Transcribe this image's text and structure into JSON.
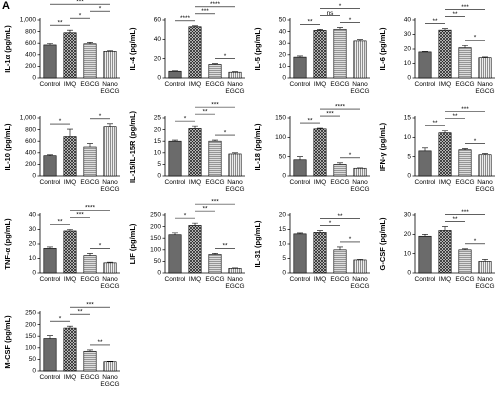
{
  "panel_label": "A",
  "chart_data": [
    {
      "type": "bar",
      "y_label": "IL-1α (pg/mL)",
      "categories": [
        "Control",
        "IMQ",
        "EGCG",
        "Nano EGCG"
      ],
      "values": [
        570,
        780,
        590,
        460
      ],
      "errors": [
        25,
        45,
        25,
        12
      ],
      "ylim": [
        0,
        1000
      ],
      "yticks": [
        0,
        200,
        400,
        600,
        800,
        {
          "value": 1000,
          "label": "1,000"
        }
      ],
      "brackets": [
        {
          "between": [
            0,
            1
          ],
          "label": "**"
        },
        {
          "between": [
            1,
            2
          ],
          "label": "*"
        },
        {
          "between": [
            2,
            3
          ],
          "label": "*"
        },
        {
          "between": [
            0,
            3
          ],
          "label": "***"
        }
      ]
    },
    {
      "type": "bar",
      "y_label": "IL-4 (pg/mL)",
      "categories": [
        "Control",
        "IMQ",
        "EGCG",
        "Nano EGCG"
      ],
      "values": [
        7,
        53,
        14,
        6
      ],
      "errors": [
        0.5,
        1,
        0.8,
        0.5
      ],
      "ylim": [
        0,
        60
      ],
      "yticks": [
        0,
        20,
        40,
        60
      ],
      "brackets": [
        {
          "between": [
            2,
            3
          ],
          "label": "*"
        },
        {
          "between": [
            0,
            1
          ],
          "label": "****"
        },
        {
          "between": [
            1,
            2
          ],
          "label": "***"
        },
        {
          "between": [
            1,
            3
          ],
          "label": "****"
        }
      ]
    },
    {
      "type": "bar",
      "y_label": "IL-5 (pg/mL)",
      "categories": [
        "Control",
        "IMQ",
        "EGCG",
        "Nano EGCG"
      ],
      "values": [
        18,
        41,
        42,
        32
      ],
      "errors": [
        1,
        1,
        1.5,
        1
      ],
      "ylim": [
        0,
        50
      ],
      "yticks": [
        0,
        10,
        20,
        30,
        40,
        50
      ],
      "brackets": [
        {
          "between": [
            0,
            1
          ],
          "label": "**"
        },
        {
          "between": [
            2,
            3
          ],
          "label": "*"
        },
        {
          "between": [
            1,
            2
          ],
          "label": "ns"
        },
        {
          "between": [
            1,
            3
          ],
          "label": "*"
        }
      ]
    },
    {
      "type": "bar",
      "y_label": "IL-6 (pg/mL)",
      "categories": [
        "Control",
        "IMQ",
        "EGCG",
        "Nano EGCG"
      ],
      "values": [
        18,
        33,
        21,
        14
      ],
      "errors": [
        0.3,
        1,
        1.5,
        0.5
      ],
      "ylim": [
        0,
        40
      ],
      "yticks": [
        0,
        10,
        20,
        30,
        40
      ],
      "brackets": [
        {
          "between": [
            2,
            3
          ],
          "label": "*"
        },
        {
          "between": [
            0,
            1
          ],
          "label": "**"
        },
        {
          "between": [
            1,
            2
          ],
          "label": "**"
        },
        {
          "between": [
            1,
            3
          ],
          "label": "***"
        }
      ]
    },
    {
      "type": "bar",
      "y_label": "IL-10 (pg/mL)",
      "categories": [
        "Control",
        "IMQ",
        "EGCG",
        "Nano EGCG"
      ],
      "values": [
        350,
        680,
        500,
        850
      ],
      "errors": [
        15,
        130,
        60,
        50
      ],
      "ylim": [
        0,
        1000
      ],
      "yticks": [
        0,
        200,
        400,
        600,
        800,
        {
          "value": 1000,
          "label": "1,000"
        }
      ],
      "brackets": [
        {
          "between": [
            0,
            1
          ],
          "label": "*"
        },
        {
          "between": [
            2,
            3
          ],
          "label": "*"
        }
      ]
    },
    {
      "type": "bar",
      "y_label": "IL-15/IL-15R (pg/mL)",
      "categories": [
        "Control",
        "IMQ",
        "EGCG",
        "Nano EGCG"
      ],
      "values": [
        15,
        20.5,
        15,
        9.5
      ],
      "errors": [
        0.5,
        1,
        0.5,
        0.5
      ],
      "ylim": [
        0,
        25
      ],
      "yticks": [
        0,
        5,
        10,
        15,
        20,
        25
      ],
      "brackets": [
        {
          "between": [
            2,
            3
          ],
          "label": "*"
        },
        {
          "between": [
            0,
            1
          ],
          "label": "*"
        },
        {
          "between": [
            1,
            2
          ],
          "label": "**"
        },
        {
          "between": [
            1,
            3
          ],
          "label": "***"
        }
      ]
    },
    {
      "type": "bar",
      "y_label": "IL-18 (pg/mL)",
      "categories": [
        "Control",
        "IMQ",
        "EGCG",
        "Nano EGCG"
      ],
      "values": [
        42,
        122,
        30,
        20
      ],
      "errors": [
        8,
        2,
        4,
        1
      ],
      "ylim": [
        0,
        150
      ],
      "yticks": [
        0,
        50,
        100,
        150
      ],
      "brackets": [
        {
          "between": [
            2,
            3
          ],
          "label": "*"
        },
        {
          "between": [
            0,
            1
          ],
          "label": "**"
        },
        {
          "between": [
            1,
            2
          ],
          "label": "***"
        },
        {
          "between": [
            1,
            3
          ],
          "label": "****"
        }
      ]
    },
    {
      "type": "bar",
      "y_label": "IFN-γ (pg/mL)",
      "categories": [
        "Control",
        "IMQ",
        "EGCG",
        "Nano EGCG"
      ],
      "values": [
        6.5,
        11.2,
        6.8,
        5.5
      ],
      "errors": [
        0.8,
        0.5,
        0.3,
        0.3
      ],
      "ylim": [
        0,
        15
      ],
      "yticks": [
        0,
        5,
        10,
        15
      ],
      "brackets": [
        {
          "between": [
            2,
            3
          ],
          "label": "*"
        },
        {
          "between": [
            0,
            1
          ],
          "label": "**"
        },
        {
          "between": [
            1,
            2
          ],
          "label": "**"
        },
        {
          "between": [
            1,
            3
          ],
          "label": "***"
        }
      ]
    },
    {
      "type": "bar",
      "y_label": "TNF-α (pg/mL)",
      "categories": [
        "Control",
        "IMQ",
        "EGCG",
        "Nano EGCG"
      ],
      "values": [
        17,
        29,
        12,
        7
      ],
      "errors": [
        1,
        1,
        1.5,
        0.5
      ],
      "ylim": [
        0,
        40
      ],
      "yticks": [
        0,
        10,
        20,
        30,
        40
      ],
      "brackets": [
        {
          "between": [
            2,
            3
          ],
          "label": "*"
        },
        {
          "between": [
            0,
            1
          ],
          "label": "**"
        },
        {
          "between": [
            1,
            2
          ],
          "label": "***"
        },
        {
          "between": [
            1,
            3
          ],
          "label": "****"
        }
      ]
    },
    {
      "type": "bar",
      "y_label": "LIF (pg/mL)",
      "categories": [
        "Control",
        "IMQ",
        "EGCG",
        "Nano EGCG"
      ],
      "values": [
        165,
        205,
        80,
        20
      ],
      "errors": [
        8,
        10,
        5,
        2
      ],
      "ylim": [
        0,
        250
      ],
      "yticks": [
        0,
        50,
        100,
        150,
        200,
        250
      ],
      "brackets": [
        {
          "between": [
            2,
            3
          ],
          "label": "**"
        },
        {
          "between": [
            0,
            1
          ],
          "label": "*"
        },
        {
          "between": [
            1,
            2
          ],
          "label": "**"
        },
        {
          "between": [
            1,
            3
          ],
          "label": "***"
        }
      ]
    },
    {
      "type": "bar",
      "y_label": "IL-31 (pg/mL)",
      "categories": [
        "Control",
        "IMQ",
        "EGCG",
        "Nano EGCG"
      ],
      "values": [
        13.5,
        14,
        8,
        4.5
      ],
      "errors": [
        0.3,
        0.6,
        1,
        0.2
      ],
      "ylim": [
        0,
        20
      ],
      "yticks": [
        0,
        5,
        10,
        15,
        20
      ],
      "brackets": [
        {
          "between": [
            2,
            3
          ],
          "label": "*"
        },
        {
          "between": [
            1,
            2
          ],
          "label": "*"
        },
        {
          "between": [
            1,
            3
          ],
          "label": "**"
        }
      ]
    },
    {
      "type": "bar",
      "y_label": "G-CSF (pg/mL)",
      "categories": [
        "Control",
        "IMQ",
        "EGCG",
        "Nano EGCG"
      ],
      "values": [
        19,
        22,
        12,
        6
      ],
      "errors": [
        1,
        2,
        0.5,
        1
      ],
      "ylim": [
        0,
        30
      ],
      "yticks": [
        0,
        10,
        20,
        30
      ],
      "brackets": [
        {
          "between": [
            2,
            3
          ],
          "label": "*"
        },
        {
          "between": [
            1,
            2
          ],
          "label": "**"
        },
        {
          "between": [
            1,
            3
          ],
          "label": "***"
        }
      ]
    },
    {
      "type": "bar",
      "y_label": "M-CSF (pg/mL)",
      "categories": [
        "Control",
        "IMQ",
        "EGCG",
        "Nano EGCG"
      ],
      "values": [
        140,
        185,
        85,
        40
      ],
      "errors": [
        12,
        8,
        6,
        2
      ],
      "ylim": [
        0,
        250
      ],
      "yticks": [
        0,
        50,
        100,
        150,
        200,
        250
      ],
      "brackets": [
        {
          "between": [
            2,
            3
          ],
          "label": "**"
        },
        {
          "between": [
            0,
            1
          ],
          "label": "*"
        },
        {
          "between": [
            1,
            2
          ],
          "label": "**"
        },
        {
          "between": [
            1,
            3
          ],
          "label": "***"
        }
      ]
    }
  ]
}
